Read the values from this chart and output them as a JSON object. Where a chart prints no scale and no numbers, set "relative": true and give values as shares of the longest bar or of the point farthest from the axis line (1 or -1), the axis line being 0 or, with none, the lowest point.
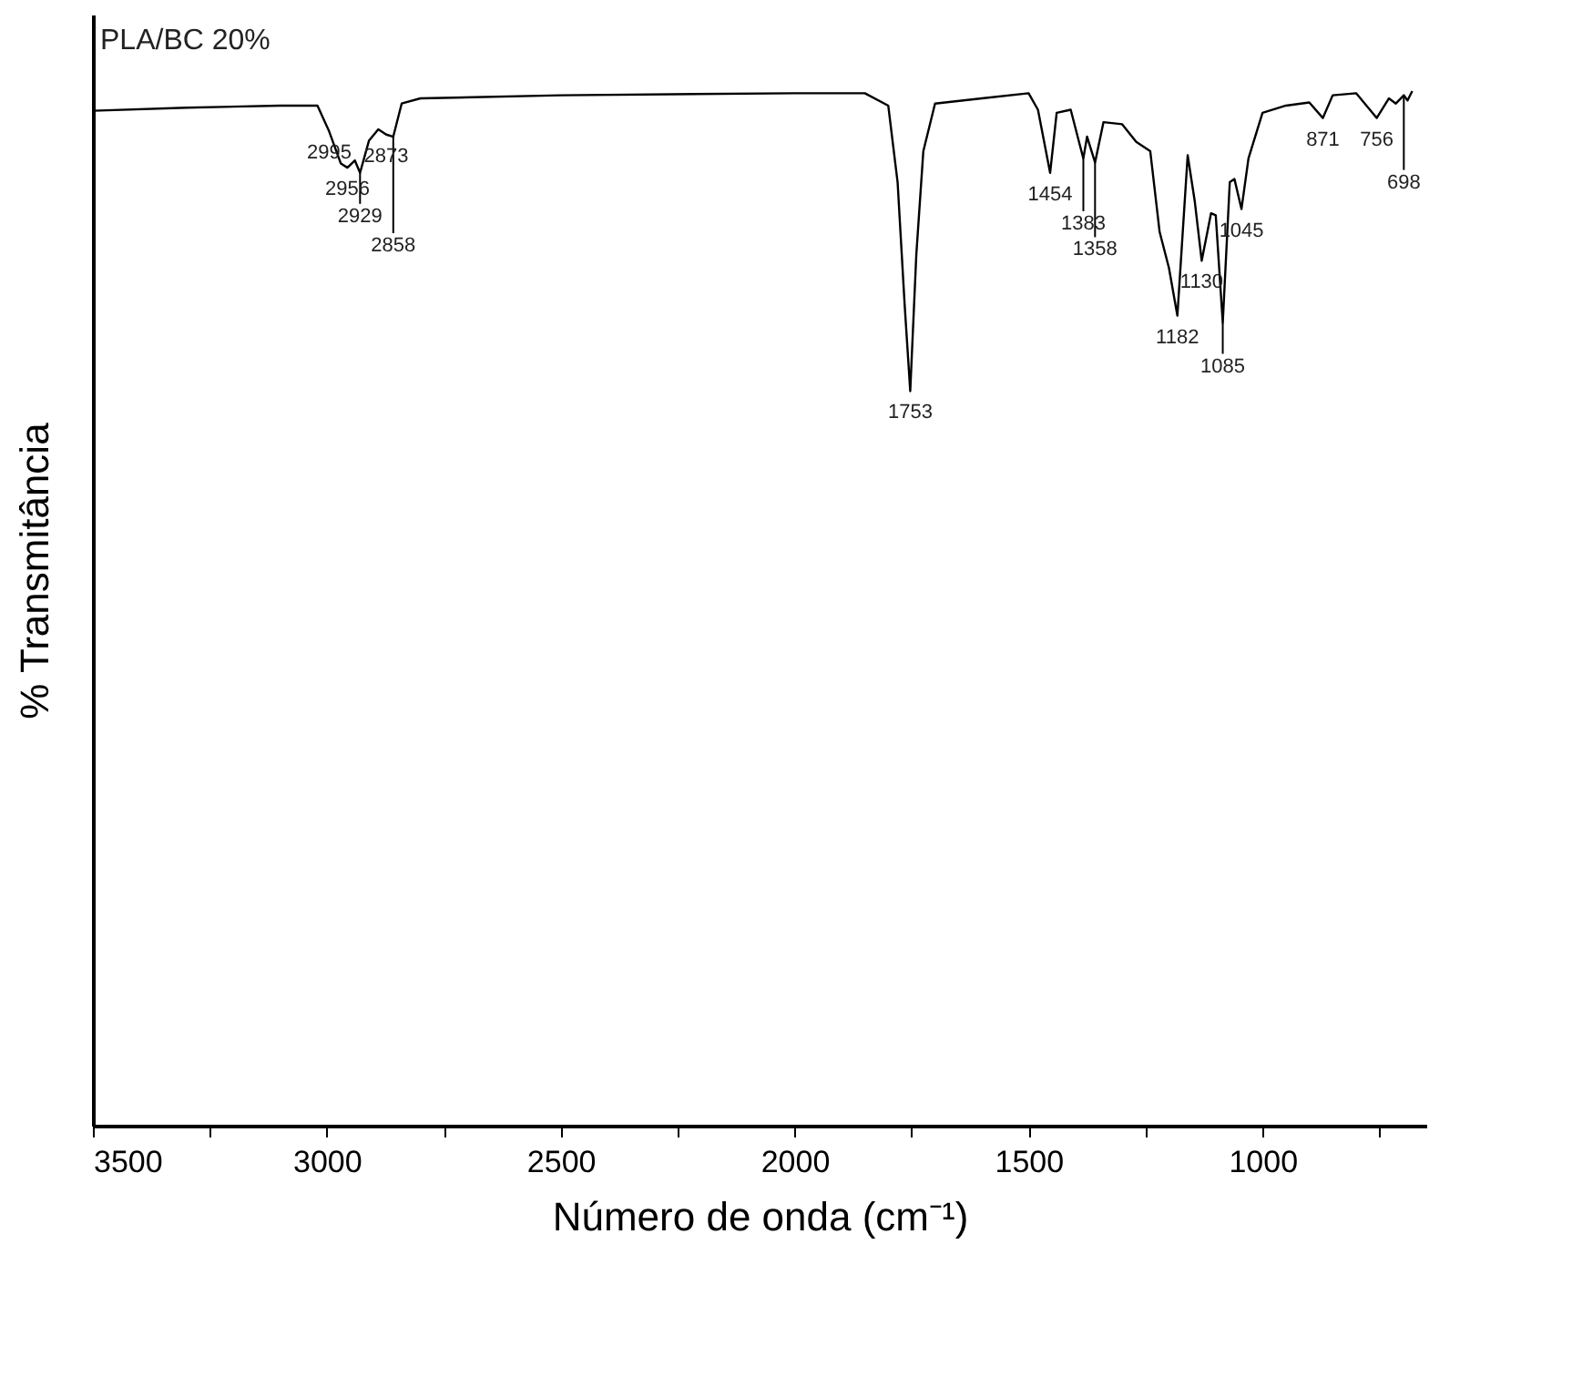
{
  "chart_data": {
    "type": "line",
    "title": "PLA/BC 20%",
    "xlabel": "Número de onda (cm⁻¹)",
    "ylabel": "% Transmitância",
    "relative": true,
    "xlim": [
      3500,
      650
    ],
    "xticks": [
      3500,
      {
        "value": 3250,
        "label": null
      },
      3000,
      {
        "value": 2750,
        "label": null
      },
      2500,
      {
        "value": 2250,
        "label": null
      },
      2000,
      {
        "value": 1750,
        "label": null
      },
      1500,
      {
        "value": 1250,
        "label": null
      },
      1000,
      {
        "value": 750,
        "label": null
      }
    ],
    "x": [
      3500,
      3300,
      3100,
      3020,
      2995,
      2970,
      2956,
      2940,
      2929,
      2910,
      2890,
      2873,
      2858,
      2840,
      2800,
      2500,
      2000,
      1850,
      1800,
      1780,
      1765,
      1753,
      1740,
      1725,
      1700,
      1600,
      1500,
      1480,
      1454,
      1440,
      1410,
      1390,
      1383,
      1375,
      1358,
      1340,
      1300,
      1270,
      1240,
      1220,
      1200,
      1182,
      1160,
      1145,
      1130,
      1110,
      1100,
      1085,
      1070,
      1060,
      1045,
      1030,
      1000,
      950,
      900,
      871,
      850,
      800,
      756,
      730,
      715,
      698,
      690,
      680
    ],
    "series": [
      {
        "color": "#000000",
        "values": [
          0.981,
          0.984,
          0.986,
          0.986,
          0.961,
          0.93,
          0.926,
          0.933,
          0.921,
          0.952,
          0.963,
          0.958,
          0.956,
          0.988,
          0.993,
          0.996,
          0.998,
          0.998,
          0.986,
          0.912,
          0.794,
          0.71,
          0.842,
          0.942,
          0.988,
          0.993,
          0.998,
          0.982,
          0.921,
          0.979,
          0.982,
          0.947,
          0.935,
          0.956,
          0.931,
          0.97,
          0.968,
          0.951,
          0.942,
          0.864,
          0.829,
          0.783,
          0.938,
          0.894,
          0.836,
          0.882,
          0.88,
          0.776,
          0.912,
          0.915,
          0.886,
          0.935,
          0.979,
          0.986,
          0.989,
          0.974,
          0.996,
          0.998,
          0.974,
          0.993,
          0.988,
          0.996,
          0.991,
          1.0
        ]
      }
    ],
    "annotations": [
      {
        "text": "2995",
        "x": 2995,
        "y": 0.961
      },
      {
        "text": "2956",
        "x": 2956,
        "y": 0.926
      },
      {
        "text": "2929",
        "x": 2929,
        "y": 0.921
      },
      {
        "text": "2873",
        "x": 2873,
        "y": 0.958
      },
      {
        "text": "2858",
        "x": 2858,
        "y": 0.956
      },
      {
        "text": "1753",
        "x": 1753,
        "y": 0.71
      },
      {
        "text": "1454",
        "x": 1454,
        "y": 0.921
      },
      {
        "text": "1383",
        "x": 1383,
        "y": 0.935
      },
      {
        "text": "1358",
        "x": 1358,
        "y": 0.931
      },
      {
        "text": "1182",
        "x": 1182,
        "y": 0.783
      },
      {
        "text": "1130",
        "x": 1130,
        "y": 0.836
      },
      {
        "text": "1085",
        "x": 1085,
        "y": 0.776
      },
      {
        "text": "1045",
        "x": 1045,
        "y": 0.886
      },
      {
        "text": "871",
        "x": 871,
        "y": 0.974
      },
      {
        "text": "756",
        "x": 756,
        "y": 0.974
      },
      {
        "text": "698",
        "x": 698,
        "y": 0.996
      }
    ]
  }
}
